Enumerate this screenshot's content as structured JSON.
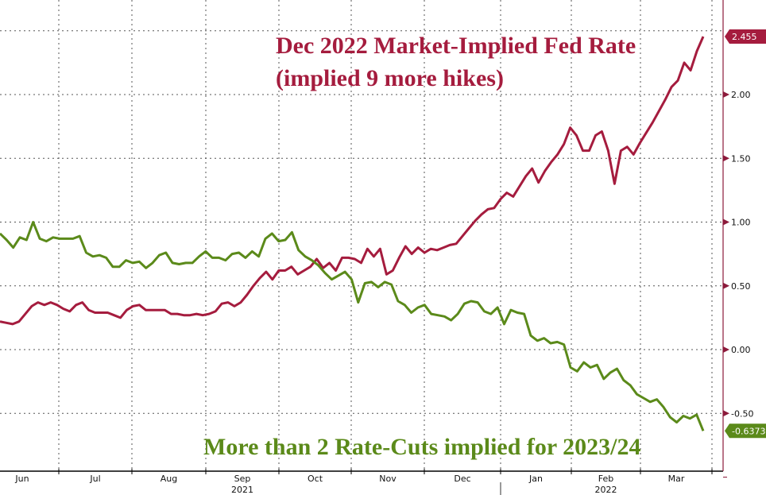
{
  "chart_data": {
    "type": "line",
    "title": "",
    "xlabel": "",
    "ylabel": "",
    "ylim": [
      -0.75,
      2.75
    ],
    "y_ticks": [
      -0.5,
      0.0,
      0.5,
      1.0,
      1.5,
      2.0
    ],
    "y_tick_labels": [
      "-0.50",
      "0.00",
      "0.50",
      "1.00",
      "1.50",
      "2.00"
    ],
    "y_axis_side": "right",
    "grid": true,
    "x_tick_labels": [
      "Jun",
      "Jul",
      "Aug",
      "Sep",
      "Oct",
      "Nov",
      "Dec",
      "Jan",
      "Feb",
      "Mar"
    ],
    "x_year_labels": [
      {
        "label": "2021",
        "under": "Sep"
      },
      {
        "label": "2022",
        "under": "Feb"
      }
    ],
    "x_range": [
      "2021-06",
      "2022-03"
    ],
    "series": [
      {
        "name": "Dec 2022 Market-Implied Fed Rate",
        "color": "#a51c3e",
        "last_value": "2.455",
        "values": [
          0.22,
          0.21,
          0.2,
          0.22,
          0.28,
          0.34,
          0.37,
          0.35,
          0.37,
          0.35,
          0.32,
          0.3,
          0.35,
          0.37,
          0.31,
          0.29,
          0.29,
          0.29,
          0.27,
          0.25,
          0.31,
          0.34,
          0.35,
          0.31,
          0.31,
          0.31,
          0.31,
          0.28,
          0.28,
          0.27,
          0.27,
          0.28,
          0.27,
          0.28,
          0.3,
          0.36,
          0.37,
          0.34,
          0.37,
          0.43,
          0.5,
          0.56,
          0.61,
          0.55,
          0.62,
          0.62,
          0.65,
          0.59,
          0.62,
          0.65,
          0.71,
          0.64,
          0.68,
          0.62,
          0.72,
          0.72,
          0.71,
          0.68,
          0.79,
          0.73,
          0.79,
          0.59,
          0.62,
          0.72,
          0.81,
          0.75,
          0.8,
          0.76,
          0.79,
          0.78,
          0.8,
          0.82,
          0.83,
          0.89,
          0.95,
          1.01,
          1.06,
          1.1,
          1.11,
          1.18,
          1.23,
          1.2,
          1.28,
          1.36,
          1.42,
          1.31,
          1.4,
          1.47,
          1.53,
          1.61,
          1.74,
          1.68,
          1.56,
          1.56,
          1.68,
          1.71,
          1.56,
          1.3,
          1.56,
          1.59,
          1.53,
          1.62,
          1.7,
          1.78,
          1.87,
          1.96,
          2.06,
          2.11,
          2.25,
          2.19,
          2.34,
          2.455
        ]
      },
      {
        "name": "More than 2 Rate-Cuts implied for 2023/24",
        "color": "#5b8a1a",
        "last_value": "-0.6373",
        "values": [
          0.91,
          0.86,
          0.8,
          0.88,
          0.86,
          1.0,
          0.87,
          0.85,
          0.88,
          0.87,
          0.87,
          0.87,
          0.89,
          0.76,
          0.73,
          0.74,
          0.72,
          0.65,
          0.65,
          0.7,
          0.68,
          0.69,
          0.64,
          0.68,
          0.74,
          0.76,
          0.68,
          0.67,
          0.68,
          0.68,
          0.73,
          0.77,
          0.72,
          0.72,
          0.7,
          0.75,
          0.76,
          0.72,
          0.77,
          0.73,
          0.87,
          0.91,
          0.85,
          0.86,
          0.92,
          0.78,
          0.73,
          0.7,
          0.66,
          0.6,
          0.55,
          0.58,
          0.61,
          0.55,
          0.37,
          0.52,
          0.53,
          0.49,
          0.53,
          0.51,
          0.38,
          0.35,
          0.29,
          0.33,
          0.35,
          0.28,
          0.27,
          0.26,
          0.23,
          0.28,
          0.36,
          0.38,
          0.37,
          0.3,
          0.28,
          0.33,
          0.2,
          0.31,
          0.29,
          0.28,
          0.11,
          0.07,
          0.09,
          0.05,
          0.06,
          0.04,
          -0.14,
          -0.17,
          -0.1,
          -0.14,
          -0.12,
          -0.23,
          -0.18,
          -0.15,
          -0.24,
          -0.28,
          -0.35,
          -0.38,
          -0.41,
          -0.39,
          -0.45,
          -0.53,
          -0.57,
          -0.52,
          -0.54,
          -0.51,
          -0.6373
        ]
      }
    ],
    "annotations": [
      {
        "text_line1": "Dec 2022 Market-Implied Fed Rate",
        "text_line2": "(implied 9 more hikes)",
        "color": "#a51c3e",
        "position": "top-right"
      },
      {
        "text": "More than 2 Rate-Cuts implied for 2023/24",
        "color": "#5b8a1a",
        "position": "bottom-right"
      }
    ]
  }
}
